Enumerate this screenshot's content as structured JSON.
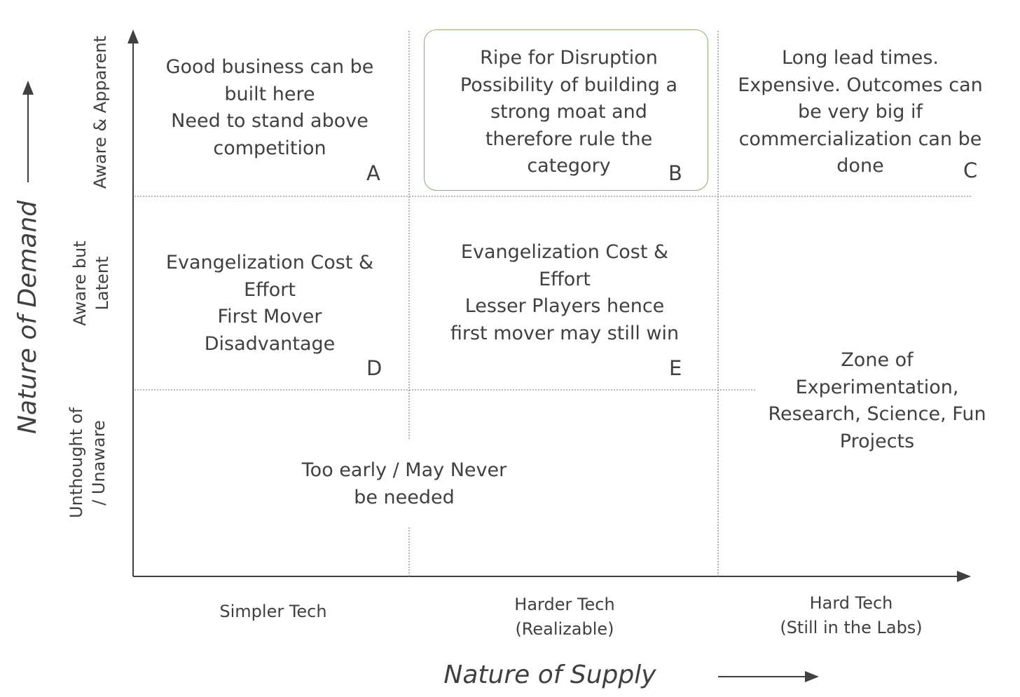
{
  "diagram": {
    "title_y": "Nature of Demand",
    "title_x": "Nature of Supply",
    "demand_levels": [
      "Aware & Apparent",
      "Aware but\nLatent",
      "Unthought of\n/ Unaware"
    ],
    "supply_levels": [
      "Simpler Tech",
      "Harder Tech\n(Realizable)",
      "Hard Tech\n(Still in the Labs)"
    ],
    "highlight_color": "#8ab06a",
    "cells": {
      "A": {
        "letter": "A",
        "text": "Good business can be\nbuilt here\nNeed to stand above\ncompetition"
      },
      "B": {
        "letter": "B",
        "text": "Ripe for Disruption\nPossibility of building a\nstrong moat and\ntherefore rule the\ncategory"
      },
      "C": {
        "letter": "C",
        "text": "Long lead times.\nExpensive. Outcomes can\nbe very big if\ncommercialization can be\ndone"
      },
      "D": {
        "letter": "D",
        "text": "Evangelization Cost &\nEffort\nFirst Mover\nDisadvantage"
      },
      "E": {
        "letter": "E",
        "text": "Evangelization Cost &\nEffort\nLesser Players hence\nfirst mover may still win"
      },
      "zone": {
        "text": "Zone of\nExperimentation,\nResearch, Science, Fun\nProjects"
      },
      "early": {
        "text": "Too early / May Never\nbe needed"
      }
    }
  }
}
